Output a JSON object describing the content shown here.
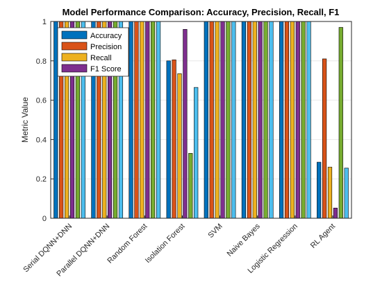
{
  "colors": {
    "grid": "#e3e3e3",
    "axis": "#262626",
    "bar_edge": "#000000",
    "series": [
      "#0072BD",
      "#D95319",
      "#EDB120",
      "#7E2F8E",
      "#77AC30",
      "#4DBEEE"
    ]
  },
  "chart_data": {
    "type": "bar",
    "title": "Model Performance Comparison: Accuracy, Precision, Recall, F1",
    "xlabel": "",
    "ylabel": "Metric Value",
    "ylim": [
      0,
      1
    ],
    "yticks": [
      0,
      0.2,
      0.4,
      0.6,
      0.8,
      1
    ],
    "ytick_labels": [
      "0",
      "0.2",
      "0.4",
      "0.6",
      "0.8",
      "1"
    ],
    "grid": true,
    "legend_position": "top-left",
    "categories": [
      "Serial DQNN+DNN",
      "Parallel DQNN+DNN",
      "Random Forest",
      "Isolation Forest",
      "SVM",
      "Naive Bayes",
      "Logistic Regression",
      "RL Agent"
    ],
    "series": [
      {
        "name": "Accuracy",
        "values": [
          1.0,
          1.0,
          1.0,
          0.8,
          1.0,
          1.0,
          1.0,
          0.285
        ]
      },
      {
        "name": "Precision",
        "values": [
          1.0,
          1.0,
          1.0,
          0.805,
          1.0,
          1.0,
          1.0,
          0.81
        ]
      },
      {
        "name": "Recall",
        "values": [
          1.0,
          1.0,
          1.0,
          0.735,
          1.0,
          1.0,
          1.0,
          0.26
        ]
      },
      {
        "name": "F1 Score",
        "values": [
          1.0,
          1.0,
          1.0,
          0.96,
          1.0,
          1.0,
          1.0,
          0.052
        ]
      },
      {
        "values": [
          1.0,
          1.0,
          1.0,
          0.33,
          1.0,
          1.0,
          1.0,
          0.97
        ]
      },
      {
        "values": [
          1.0,
          1.0,
          1.0,
          0.665,
          1.0,
          1.0,
          1.0,
          0.255
        ]
      }
    ]
  }
}
